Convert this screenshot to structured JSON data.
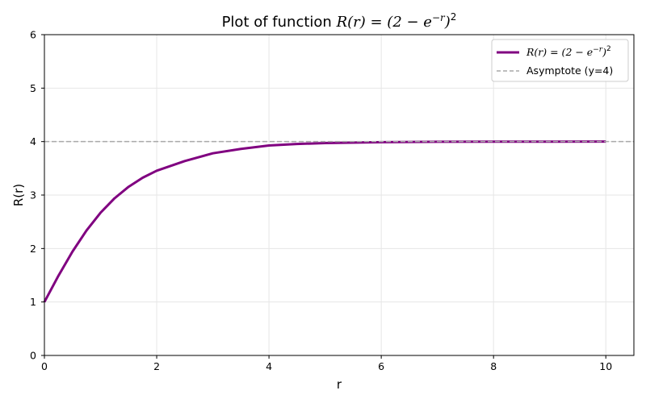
{
  "chart_data": {
    "type": "line",
    "title": {
      "prefix": "Plot of function ",
      "formula": "R(r) = (2 − e",
      "formula_exp": "−r",
      "formula_tail": ")",
      "formula_sq": "2"
    },
    "xlabel": "r",
    "ylabel": "R(r)",
    "xlim": [
      0,
      10.5
    ],
    "ylim": [
      0,
      6
    ],
    "xticks": [
      0,
      2,
      4,
      6,
      8,
      10
    ],
    "yticks": [
      0,
      1,
      2,
      3,
      4,
      5,
      6
    ],
    "grid": true,
    "legend_position": "top-right",
    "series": [
      {
        "name": "R(r) = (2 − e^(−r))^2",
        "legend": {
          "formula": "R(r) = (2 − e",
          "exp": "−r",
          "tail": ")",
          "sq": "2"
        },
        "color": "#800080",
        "style": "solid",
        "x": [
          0,
          0.25,
          0.5,
          0.75,
          1,
          1.25,
          1.5,
          1.75,
          2,
          2.5,
          3,
          3.5,
          4,
          4.5,
          5,
          6,
          7,
          8,
          9,
          10
        ],
        "y": [
          1.0,
          1.491,
          1.943,
          2.338,
          2.67,
          2.94,
          3.155,
          3.324,
          3.455,
          3.636,
          3.781,
          3.863,
          3.927,
          3.955,
          3.973,
          3.99,
          3.996,
          3.999,
          3.9995,
          3.9998
        ]
      },
      {
        "name": "Asymptote (y=4)",
        "color": "#a9a9a9",
        "style": "dashed",
        "y": 4
      }
    ]
  }
}
